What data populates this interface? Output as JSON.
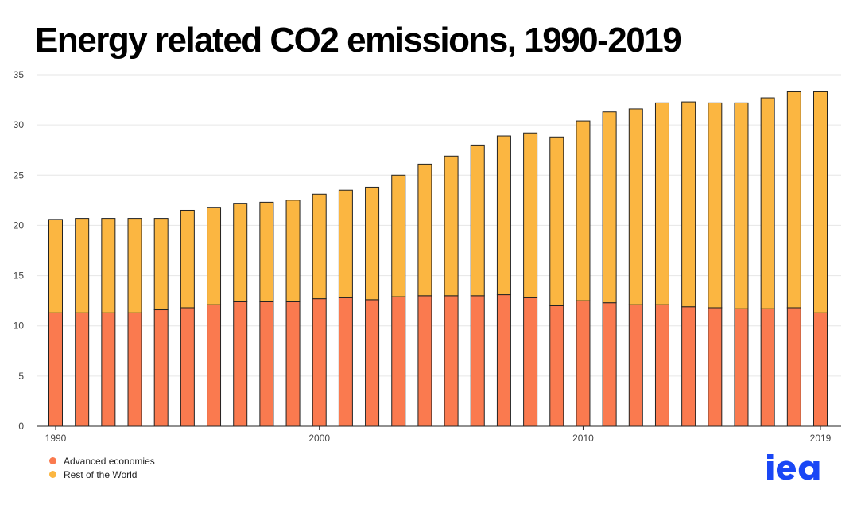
{
  "chart_data": {
    "type": "bar",
    "stacked": true,
    "title": "Energy related CO2 emissions, 1990-2019",
    "xlabel": "",
    "ylabel": "",
    "ylim": [
      0,
      35
    ],
    "yticks": [
      0,
      5,
      10,
      15,
      20,
      25,
      30,
      35
    ],
    "xtick_labels": [
      "1990",
      "2000",
      "2010",
      "2019"
    ],
    "grid": true,
    "legend_position": "bottom-left",
    "categories": [
      1990,
      1991,
      1992,
      1993,
      1994,
      1995,
      1996,
      1997,
      1998,
      1999,
      2000,
      2001,
      2002,
      2003,
      2004,
      2005,
      2006,
      2007,
      2008,
      2009,
      2010,
      2011,
      2012,
      2013,
      2014,
      2015,
      2016,
      2017,
      2018,
      2019
    ],
    "series": [
      {
        "name": "Advanced economies",
        "color": "#fa7a4f",
        "values": [
          11.3,
          11.3,
          11.3,
          11.3,
          11.6,
          11.8,
          12.1,
          12.4,
          12.4,
          12.4,
          12.7,
          12.8,
          12.6,
          12.9,
          13.0,
          13.0,
          13.0,
          13.1,
          12.8,
          12.0,
          12.5,
          12.3,
          12.1,
          12.1,
          11.9,
          11.8,
          11.7,
          11.7,
          11.8,
          11.3
        ]
      },
      {
        "name": "Rest of the World",
        "color": "#fbb641",
        "values": [
          9.3,
          9.4,
          9.4,
          9.4,
          9.1,
          9.7,
          9.7,
          9.8,
          9.9,
          10.1,
          10.4,
          10.7,
          11.2,
          12.1,
          13.1,
          13.9,
          15.0,
          15.8,
          16.4,
          16.8,
          17.9,
          19.0,
          19.5,
          20.1,
          20.4,
          20.4,
          20.5,
          21.0,
          21.5,
          22.0
        ]
      }
    ]
  },
  "logo": {
    "text": "iea",
    "color": "#1a47f5"
  },
  "colors": {
    "grid": "#e6e6e6",
    "axis": "#222222"
  }
}
